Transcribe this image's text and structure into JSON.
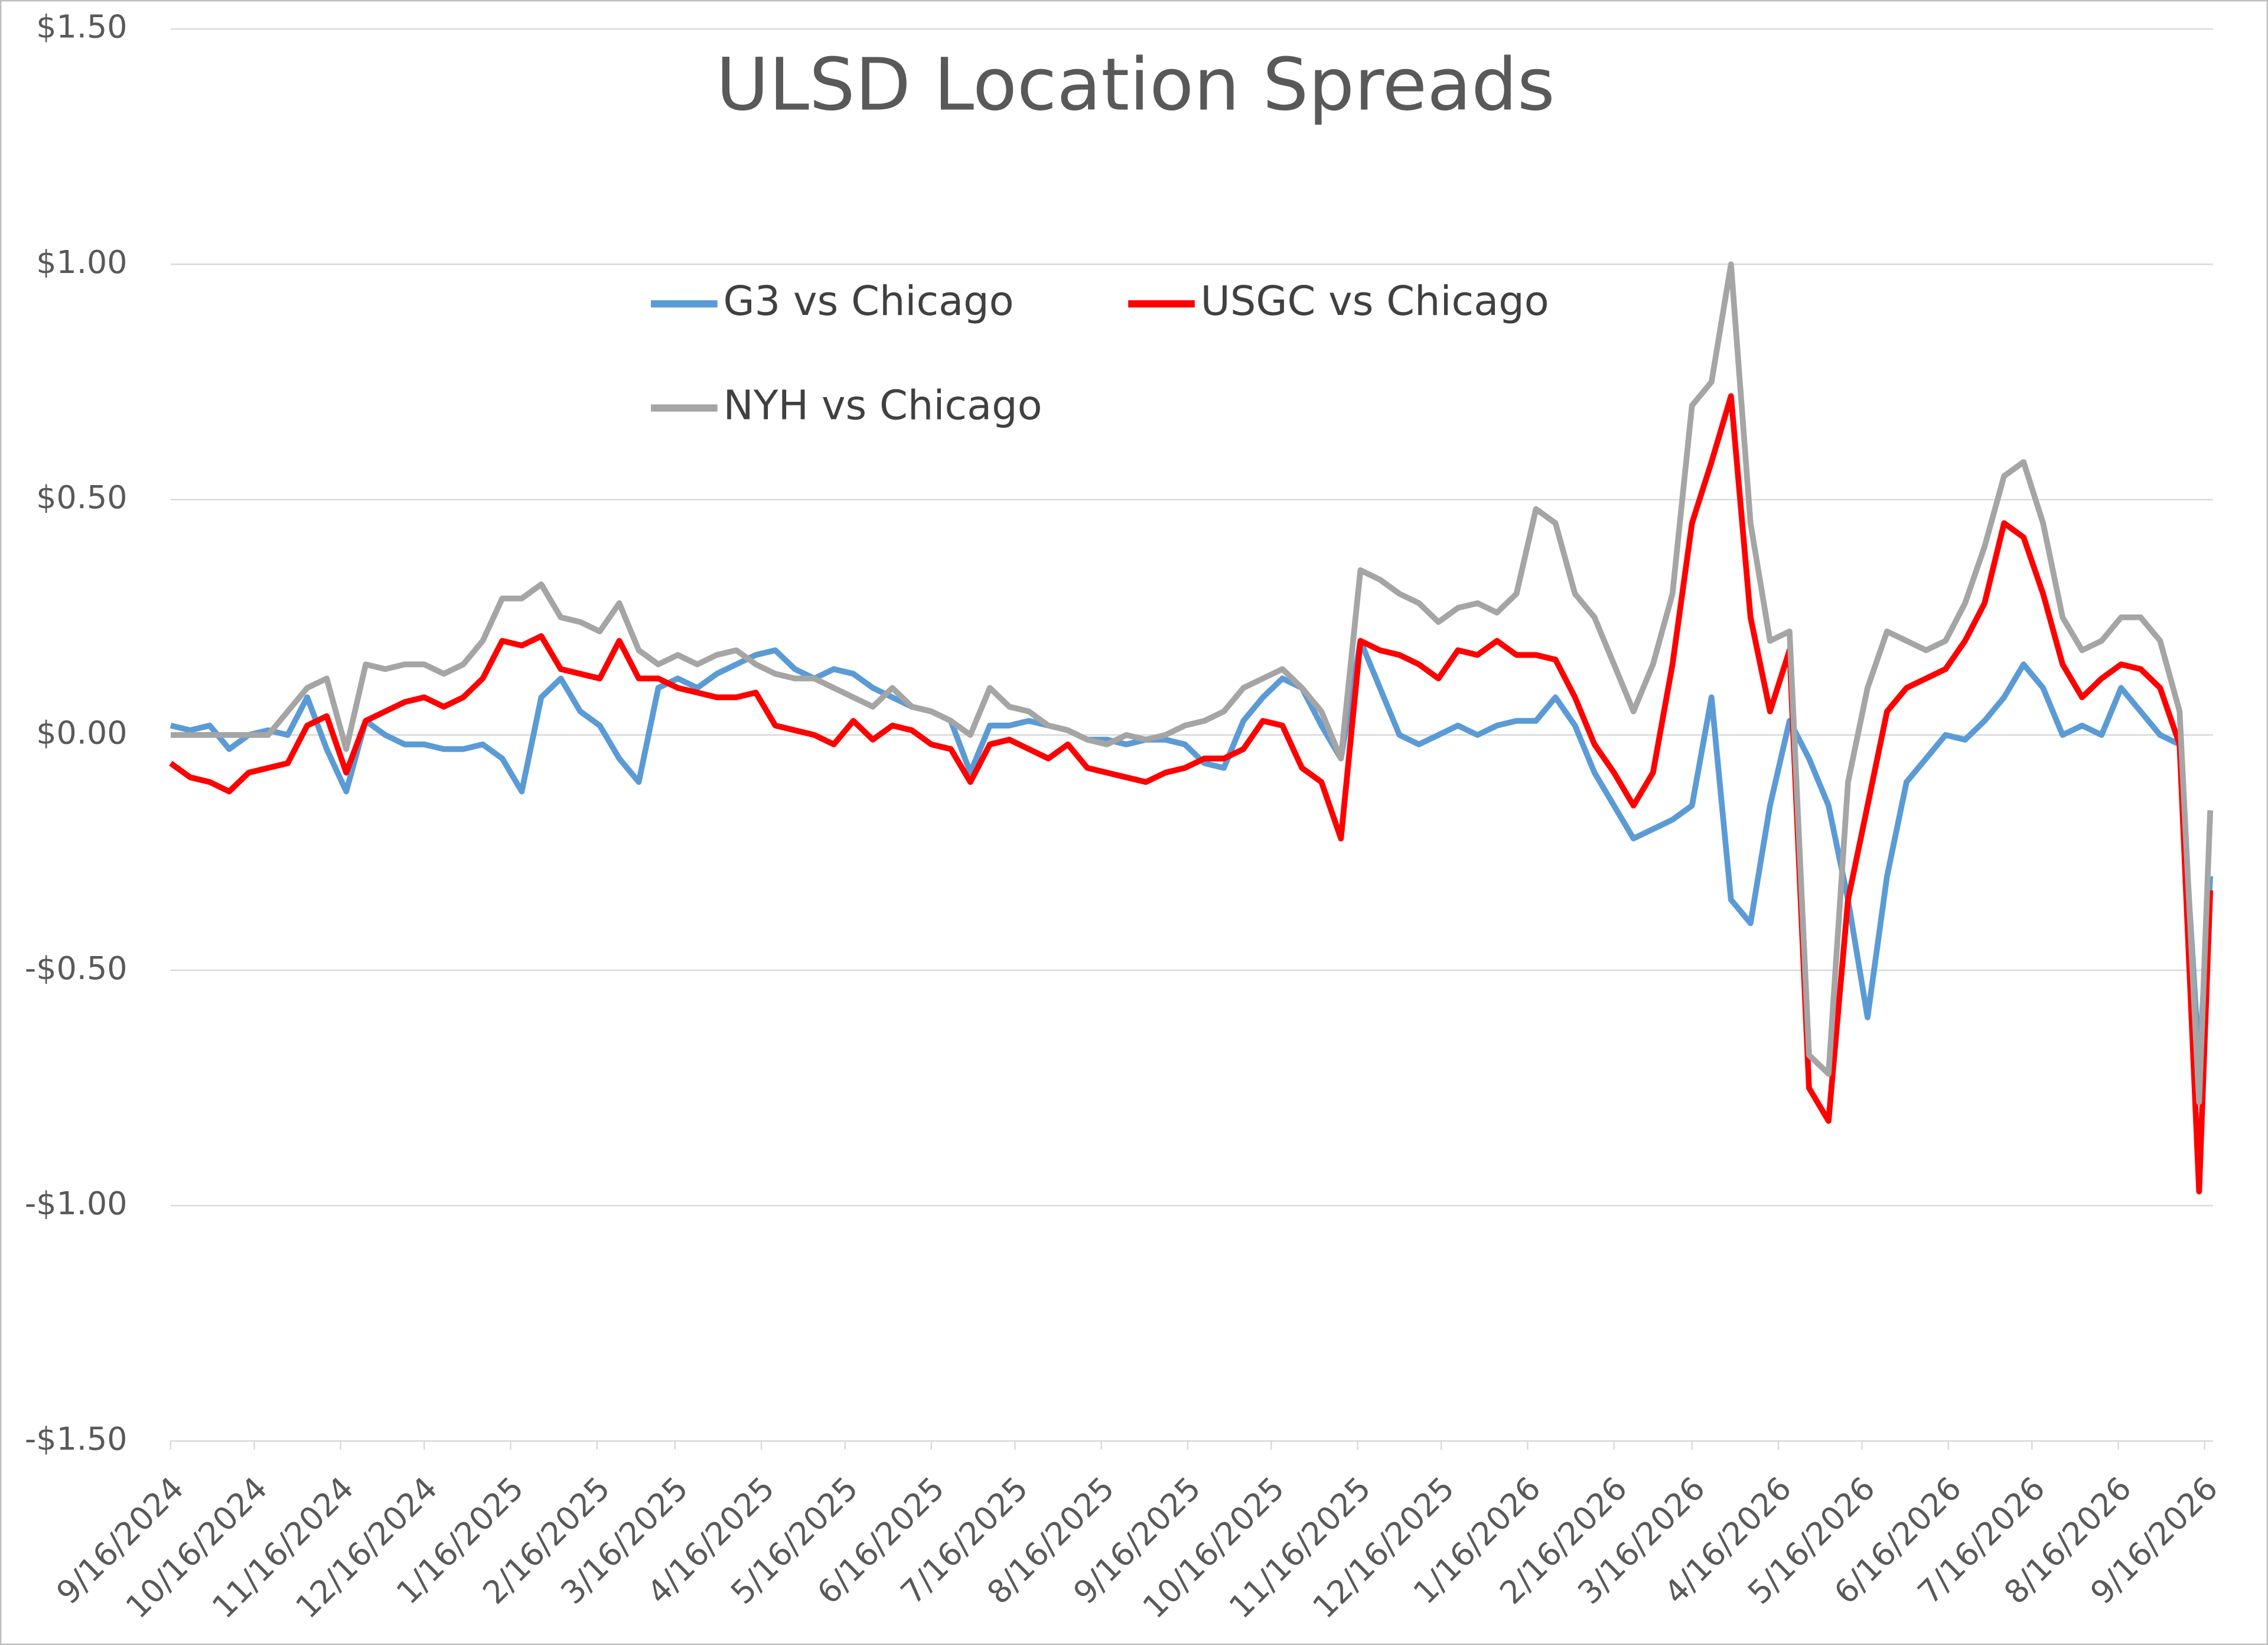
{
  "chart_data": {
    "type": "line",
    "title": "ULSD Location Spreads",
    "x": [
      "9/16/2024",
      "9/23/2024",
      "9/30/2024",
      "10/7/2024",
      "10/14/2024",
      "10/21/2024",
      "10/28/2024",
      "11/4/2024",
      "11/11/2024",
      "11/18/2024",
      "11/25/2024",
      "12/2/2024",
      "12/9/2024",
      "12/16/2024",
      "12/23/2024",
      "12/30/2024",
      "1/6/2025",
      "1/13/2025",
      "1/20/2025",
      "1/27/2025",
      "2/3/2025",
      "2/10/2025",
      "2/17/2025",
      "2/24/2025",
      "3/3/2025",
      "3/10/2025",
      "3/17/2025",
      "3/24/2025",
      "3/31/2025",
      "4/7/2025",
      "4/14/2025",
      "4/21/2025",
      "4/28/2025",
      "5/5/2025",
      "5/12/2025",
      "5/19/2025",
      "5/26/2025",
      "6/2/2025",
      "6/9/2025",
      "6/16/2025",
      "6/23/2025",
      "6/30/2025",
      "7/7/2025",
      "7/14/2025",
      "7/21/2025",
      "7/28/2025",
      "8/4/2025",
      "8/11/2025",
      "8/18/2025",
      "8/25/2025",
      "9/1/2025",
      "9/8/2025",
      "9/15/2025",
      "9/22/2025",
      "9/29/2025",
      "10/6/2025",
      "10/13/2025",
      "10/20/2025",
      "10/27/2025",
      "11/3/2025",
      "11/10/2025",
      "11/17/2025",
      "11/24/2025",
      "12/1/2025",
      "12/8/2025",
      "12/15/2025",
      "12/22/2025",
      "12/29/2025",
      "1/5/2026",
      "1/12/2026",
      "1/19/2026",
      "1/26/2026",
      "2/2/2026",
      "2/9/2026",
      "2/16/2026",
      "2/23/2026",
      "3/2/2026",
      "3/9/2026",
      "3/16/2026",
      "3/23/2026",
      "3/30/2026",
      "4/6/2026",
      "4/13/2026",
      "4/20/2026",
      "4/27/2026",
      "5/4/2026",
      "5/11/2026",
      "5/18/2026",
      "5/25/2026",
      "6/1/2026",
      "6/8/2026",
      "6/15/2026",
      "6/22/2026",
      "6/29/2026",
      "7/6/2026",
      "7/13/2026",
      "7/20/2026",
      "7/27/2026",
      "8/3/2026",
      "8/10/2026",
      "8/17/2026",
      "8/24/2026",
      "8/31/2026",
      "9/7/2026",
      "9/14/2026",
      "9/18/2026"
    ],
    "series": [
      {
        "name": "G3 vs Chicago",
        "color": "#5b9bd5",
        "values": [
          0.02,
          0.01,
          0.02,
          -0.03,
          0.0,
          0.01,
          0.0,
          0.08,
          -0.03,
          -0.12,
          0.03,
          0.0,
          -0.02,
          -0.02,
          -0.03,
          -0.03,
          -0.02,
          -0.05,
          -0.12,
          0.08,
          0.12,
          0.05,
          0.02,
          -0.05,
          -0.1,
          0.1,
          0.12,
          0.1,
          0.13,
          0.15,
          0.17,
          0.18,
          0.14,
          0.12,
          0.14,
          0.13,
          0.1,
          0.08,
          0.06,
          0.05,
          0.03,
          -0.08,
          0.02,
          0.02,
          0.03,
          0.02,
          0.01,
          -0.01,
          -0.01,
          -0.02,
          -0.01,
          -0.01,
          -0.02,
          -0.06,
          -0.07,
          0.03,
          0.08,
          0.12,
          0.1,
          0.02,
          -0.05,
          0.2,
          0.1,
          0.0,
          -0.02,
          0.0,
          0.02,
          0.0,
          0.02,
          0.03,
          0.03,
          0.08,
          0.02,
          -0.08,
          -0.15,
          -0.22,
          -0.2,
          -0.18,
          -0.15,
          0.08,
          -0.35,
          -0.4,
          -0.15,
          0.03,
          -0.05,
          -0.15,
          -0.35,
          -0.6,
          -0.3,
          -0.1,
          -0.05,
          0.0,
          -0.01,
          0.03,
          0.08,
          0.15,
          0.1,
          0.0,
          0.02,
          0.0,
          0.1,
          0.05,
          0.0,
          -0.02,
          -0.7,
          -0.3
        ]
      },
      {
        "name": "USGC vs Chicago",
        "color": "#ff0000",
        "values": [
          -0.06,
          -0.09,
          -0.1,
          -0.12,
          -0.08,
          -0.07,
          -0.06,
          0.02,
          0.04,
          -0.08,
          0.03,
          0.05,
          0.07,
          0.08,
          0.06,
          0.08,
          0.12,
          0.2,
          0.19,
          0.21,
          0.14,
          0.13,
          0.12,
          0.2,
          0.12,
          0.12,
          0.1,
          0.09,
          0.08,
          0.08,
          0.09,
          0.02,
          0.01,
          0.0,
          -0.02,
          0.03,
          -0.01,
          0.02,
          0.01,
          -0.02,
          -0.03,
          -0.1,
          -0.02,
          -0.01,
          -0.03,
          -0.05,
          -0.02,
          -0.07,
          -0.08,
          -0.09,
          -0.1,
          -0.08,
          -0.07,
          -0.05,
          -0.05,
          -0.03,
          0.03,
          0.02,
          -0.07,
          -0.1,
          -0.22,
          0.2,
          0.18,
          0.17,
          0.15,
          0.12,
          0.18,
          0.17,
          0.2,
          0.17,
          0.17,
          0.16,
          0.08,
          -0.02,
          -0.08,
          -0.15,
          -0.08,
          0.15,
          0.45,
          0.58,
          0.72,
          0.25,
          0.05,
          0.18,
          -0.75,
          -0.82,
          -0.35,
          -0.15,
          0.05,
          0.1,
          0.12,
          0.14,
          0.2,
          0.28,
          0.45,
          0.42,
          0.3,
          0.15,
          0.08,
          0.12,
          0.15,
          0.14,
          0.1,
          -0.02,
          -0.97,
          -0.33
        ]
      },
      {
        "name": "NYH vs Chicago",
        "color": "#a5a5a5",
        "values": [
          0.0,
          0.0,
          0.0,
          0.0,
          0.0,
          0.0,
          0.05,
          0.1,
          0.12,
          -0.03,
          0.15,
          0.14,
          0.15,
          0.15,
          0.13,
          0.15,
          0.2,
          0.29,
          0.29,
          0.32,
          0.25,
          0.24,
          0.22,
          0.28,
          0.18,
          0.15,
          0.17,
          0.15,
          0.17,
          0.18,
          0.15,
          0.13,
          0.12,
          0.12,
          0.1,
          0.08,
          0.06,
          0.1,
          0.06,
          0.05,
          0.03,
          0.0,
          0.1,
          0.06,
          0.05,
          0.02,
          0.01,
          -0.01,
          -0.02,
          0.0,
          -0.01,
          0.0,
          0.02,
          0.03,
          0.05,
          0.1,
          0.12,
          0.14,
          0.1,
          0.05,
          -0.05,
          0.35,
          0.33,
          0.3,
          0.28,
          0.24,
          0.27,
          0.28,
          0.26,
          0.3,
          0.48,
          0.45,
          0.3,
          0.25,
          0.15,
          0.05,
          0.15,
          0.3,
          0.7,
          0.75,
          1.0,
          0.45,
          0.2,
          0.22,
          -0.68,
          -0.72,
          -0.1,
          0.1,
          0.22,
          0.2,
          0.18,
          0.2,
          0.28,
          0.4,
          0.55,
          0.58,
          0.45,
          0.25,
          0.18,
          0.2,
          0.25,
          0.25,
          0.2,
          0.05,
          -0.78,
          -0.16
        ]
      }
    ],
    "xlim": [
      "9/16/2024",
      "9/19/2026"
    ],
    "xticks": [
      "9/16/2024",
      "10/16/2024",
      "11/16/2024",
      "12/16/2024",
      "1/16/2025",
      "2/16/2025",
      "3/16/2025",
      "4/16/2025",
      "5/16/2025",
      "6/16/2025",
      "7/16/2025",
      "8/16/2025",
      "9/16/2025",
      "10/16/2025",
      "11/16/2025",
      "12/16/2025",
      "1/16/2026",
      "2/16/2026",
      "3/16/2026",
      "4/16/2026",
      "5/16/2026",
      "6/16/2026",
      "7/16/2026",
      "8/16/2026",
      "9/16/2026"
    ],
    "ylim": [
      -1.5,
      1.5
    ],
    "yticks": [
      {
        "value": -1.5,
        "label": "-$1.50"
      },
      {
        "value": -1,
        "label": "-$1.00"
      },
      {
        "value": -0.5,
        "label": "-$0.50"
      },
      {
        "value": 0,
        "label": "$0.00"
      },
      {
        "value": 0.5,
        "label": "$0.50"
      },
      {
        "value": 1,
        "label": "$1.00"
      },
      {
        "value": 1.5,
        "label": "$1.50"
      }
    ],
    "grid": true
  }
}
